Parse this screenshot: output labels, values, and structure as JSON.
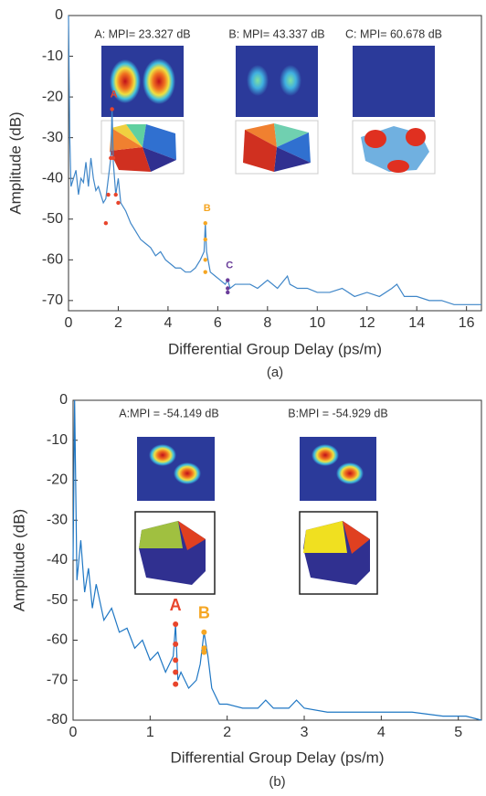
{
  "chart_data": [
    {
      "type": "line",
      "panel_label": "(a)",
      "xlabel": "Differential Group Delay (ps/m)",
      "ylabel": "Amplitude (dB)",
      "xlim": [
        0,
        16.6
      ],
      "ylim": [
        -72.5,
        0
      ],
      "xticks": [
        0,
        2,
        4,
        6,
        8,
        10,
        12,
        14,
        16
      ],
      "yticks": [
        0,
        -10,
        -20,
        -30,
        -40,
        -50,
        -60,
        -70
      ],
      "inset_labels": [
        "A: MPI= 23.327 dB",
        "B: MPI= 43.337 dB",
        "C: MPI= 60.678 dB"
      ],
      "series": [
        {
          "color": "#3f86c8",
          "x": [
            0,
            0.05,
            0.1,
            0.2,
            0.3,
            0.4,
            0.5,
            0.6,
            0.7,
            0.8,
            0.9,
            1.0,
            1.1,
            1.2,
            1.3,
            1.4,
            1.5,
            1.6,
            1.7,
            1.75,
            1.8,
            1.9,
            2.0,
            2.1,
            2.3,
            2.5,
            2.7,
            2.9,
            3.1,
            3.3,
            3.5,
            3.7,
            3.9,
            4.1,
            4.3,
            4.5,
            4.7,
            4.9,
            5.1,
            5.3,
            5.45,
            5.5,
            5.55,
            5.7,
            5.9,
            6.1,
            6.3,
            6.4,
            6.5,
            6.7,
            7.0,
            7.3,
            7.6,
            8.0,
            8.4,
            8.8,
            8.9,
            9.2,
            9.6,
            10.0,
            10.5,
            11.0,
            11.5,
            12.0,
            12.5,
            13.0,
            13.2,
            13.5,
            14.0,
            14.5,
            15.0,
            15.5,
            16.0,
            16.6
          ],
          "values": [
            0,
            -30,
            -42,
            -40,
            -38,
            -44,
            -40,
            -41,
            -36,
            -42,
            -35,
            -40,
            -43,
            -42,
            -44,
            -46,
            -45,
            -40,
            -35,
            -23,
            -36,
            -44,
            -40,
            -46,
            -48,
            -51,
            -53,
            -55,
            -56,
            -57,
            -59,
            -58,
            -60,
            -61,
            -62,
            -62,
            -63,
            -63,
            -62,
            -60,
            -58,
            -51,
            -58,
            -63,
            -64,
            -65,
            -66,
            -65,
            -67,
            -66,
            -66,
            -66,
            -67,
            -65,
            -67,
            -64,
            -66,
            -67,
            -67,
            -68,
            -68,
            -67,
            -69,
            -68,
            -69,
            -67,
            -66,
            -69,
            -69,
            -70,
            -70,
            -71,
            -71,
            -71
          ]
        }
      ],
      "points": [
        {
          "label": "A",
          "color": "#e8452c",
          "x": [
            1.5,
            1.6,
            1.7,
            1.75,
            1.8,
            1.9,
            2.0
          ],
          "values": [
            -51,
            -44,
            -35,
            -23,
            -35,
            -44,
            -46
          ]
        },
        {
          "label": "B",
          "color": "#f5a623",
          "x": [
            5.5,
            5.5,
            5.5,
            5.5
          ],
          "values": [
            -51,
            -55,
            -60,
            -63
          ]
        },
        {
          "label": "C",
          "color": "#6a3d9a",
          "x": [
            6.4,
            6.4,
            6.4
          ],
          "values": [
            -65,
            -67,
            -68
          ]
        }
      ]
    },
    {
      "type": "line",
      "panel_label": "(b)",
      "xlabel": "Differential Group Delay (ps/m)",
      "ylabel": "Amplitude (dB)",
      "xlim": [
        0,
        5.3
      ],
      "ylim": [
        -80,
        0
      ],
      "xticks": [
        0,
        1,
        2,
        3,
        4,
        5
      ],
      "yticks": [
        0,
        -10,
        -20,
        -30,
        -40,
        -50,
        -60,
        -70,
        -80
      ],
      "inset_labels": [
        "A:MPI = -54.149 dB",
        "B:MPI = -54.929 dB"
      ],
      "series": [
        {
          "color": "#1f77c4",
          "x": [
            0,
            0.02,
            0.05,
            0.1,
            0.15,
            0.2,
            0.25,
            0.3,
            0.4,
            0.5,
            0.6,
            0.7,
            0.8,
            0.9,
            1.0,
            1.1,
            1.2,
            1.25,
            1.3,
            1.33,
            1.36,
            1.4,
            1.5,
            1.6,
            1.65,
            1.7,
            1.75,
            1.8,
            1.9,
            2.0,
            2.2,
            2.4,
            2.5,
            2.6,
            2.8,
            2.9,
            3.0,
            3.3,
            3.6,
            4.0,
            4.4,
            4.8,
            5.1,
            5.3
          ],
          "values": [
            -40,
            0,
            -45,
            -35,
            -48,
            -42,
            -52,
            -46,
            -55,
            -52,
            -58,
            -57,
            -62,
            -60,
            -65,
            -63,
            -68,
            -66,
            -64,
            -56,
            -70,
            -68,
            -72,
            -70,
            -66,
            -58,
            -64,
            -72,
            -76,
            -76,
            -77,
            -77,
            -75,
            -77,
            -77,
            -75,
            -77,
            -78,
            -78,
            -78,
            -78,
            -79,
            -79,
            -80
          ]
        }
      ],
      "points": [
        {
          "label": "A",
          "color": "#e8452c",
          "x": [
            1.33,
            1.33,
            1.33,
            1.33,
            1.33
          ],
          "values": [
            -56,
            -61,
            -65,
            -68,
            -71
          ]
        },
        {
          "label": "B",
          "color": "#f5a623",
          "x": [
            1.7,
            1.7,
            1.7
          ],
          "values": [
            -58,
            -62,
            -63
          ]
        }
      ]
    }
  ]
}
